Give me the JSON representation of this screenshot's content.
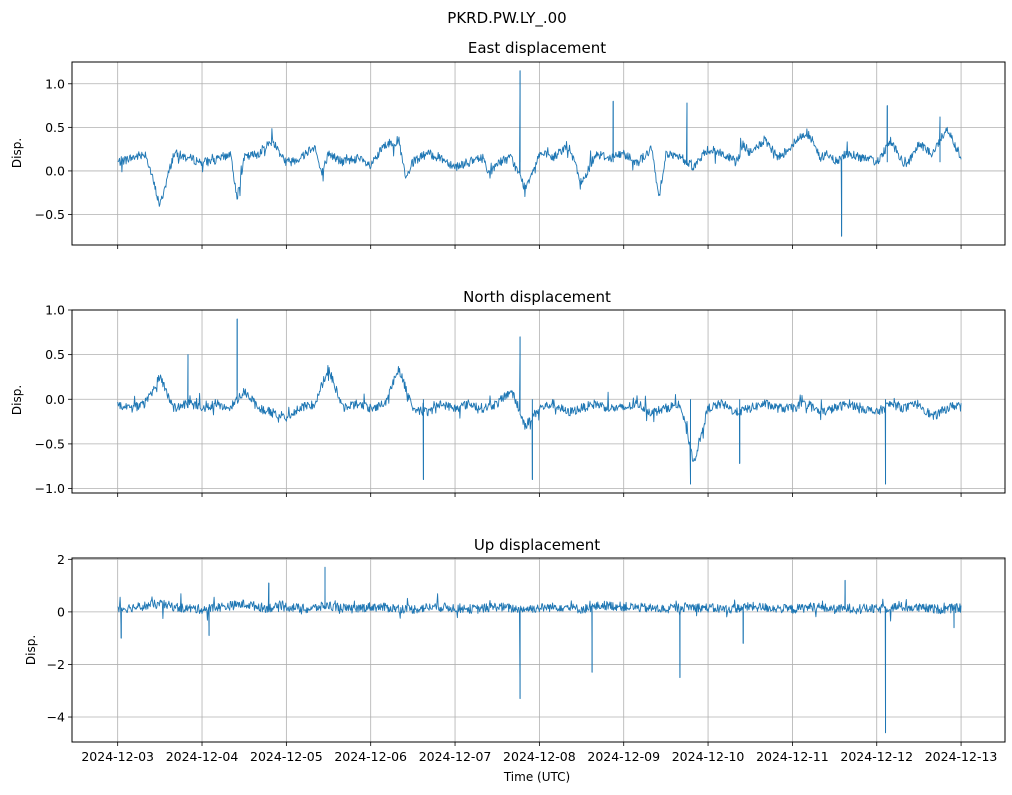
{
  "figure": {
    "suptitle": "PKRD.PW.LY_.00",
    "xlabel": "Time (UTC)",
    "x_ticks": [
      "2024-12-03",
      "2024-12-04",
      "2024-12-05",
      "2024-12-06",
      "2024-12-07",
      "2024-12-08",
      "2024-12-09",
      "2024-12-10",
      "2024-12-11",
      "2024-12-12",
      "2024-12-13"
    ],
    "line_color": "#1f77b4",
    "grid_color": "#b0b0b0"
  },
  "chart_data": [
    {
      "type": "line",
      "title": "East displacement",
      "ylabel": "Disp.",
      "xlim": [
        "2024-12-02T11:00",
        "2024-12-13T12:30"
      ],
      "ylim": [
        -0.85,
        1.25
      ],
      "yticks": [
        -0.5,
        0.0,
        0.5,
        1.0
      ],
      "ytick_labels": [
        "−0.5",
        "0.0",
        "0.5",
        "1.0"
      ],
      "grid": true,
      "series": [
        {
          "x": [
            "2024-12-03T00:00",
            "2024-12-03T04:00",
            "2024-12-03T08:00",
            "2024-12-03T10:00",
            "2024-12-03T12:00",
            "2024-12-03T16:00",
            "2024-12-03T20:00",
            "2024-12-04T00:00",
            "2024-12-04T04:00",
            "2024-12-04T08:00",
            "2024-12-04T10:00",
            "2024-12-04T12:00",
            "2024-12-04T16:00",
            "2024-12-04T20:00",
            "2024-12-05T00:00",
            "2024-12-05T04:00",
            "2024-12-05T08:00",
            "2024-12-05T10:00",
            "2024-12-05T12:00",
            "2024-12-05T16:00",
            "2024-12-05T20:00",
            "2024-12-06T00:00",
            "2024-12-06T04:00",
            "2024-12-06T08:00",
            "2024-12-06T10:00",
            "2024-12-06T12:00",
            "2024-12-06T16:00",
            "2024-12-06T20:00",
            "2024-12-07T00:00",
            "2024-12-07T04:00",
            "2024-12-07T08:00",
            "2024-12-07T10:00",
            "2024-12-07T12:00",
            "2024-12-07T16:00",
            "2024-12-07T20:00",
            "2024-12-08T00:00",
            "2024-12-08T04:00",
            "2024-12-08T08:00",
            "2024-12-08T10:00",
            "2024-12-08T12:00",
            "2024-12-08T16:00",
            "2024-12-08T20:00",
            "2024-12-09T00:00",
            "2024-12-09T04:00",
            "2024-12-09T08:00",
            "2024-12-09T10:00",
            "2024-12-09T12:00",
            "2024-12-09T16:00",
            "2024-12-09T20:00",
            "2024-12-10T00:00",
            "2024-12-10T04:00",
            "2024-12-10T08:00",
            "2024-12-10T10:00",
            "2024-12-10T12:00",
            "2024-12-10T16:00",
            "2024-12-10T20:00",
            "2024-12-11T00:00",
            "2024-12-11T04:00",
            "2024-12-11T08:00",
            "2024-12-11T10:00",
            "2024-12-11T12:00",
            "2024-12-11T16:00",
            "2024-12-11T20:00",
            "2024-12-12T00:00",
            "2024-12-12T04:00",
            "2024-12-12T08:00",
            "2024-12-12T10:00",
            "2024-12-12T12:00",
            "2024-12-12T16:00",
            "2024-12-12T20:00",
            "2024-12-13T00:00"
          ],
          "y": [
            0.1,
            0.15,
            0.2,
            -0.1,
            -0.4,
            0.2,
            0.15,
            0.1,
            0.12,
            0.2,
            -0.3,
            0.15,
            0.2,
            0.35,
            0.1,
            0.15,
            0.3,
            -0.05,
            0.2,
            0.1,
            0.15,
            0.05,
            0.3,
            0.35,
            -0.1,
            0.1,
            0.2,
            0.15,
            0.05,
            0.1,
            0.15,
            -0.05,
            0.1,
            0.15,
            -0.2,
            0.2,
            0.15,
            0.3,
            0.1,
            -0.15,
            0.2,
            0.15,
            0.2,
            0.1,
            0.25,
            -0.3,
            0.2,
            0.15,
            0.05,
            0.25,
            0.2,
            0.1,
            0.3,
            0.2,
            0.35,
            0.15,
            0.3,
            0.45,
            0.15,
            0.2,
            0.1,
            0.2,
            0.15,
            0.1,
            0.35,
            0.05,
            0.15,
            0.3,
            0.2,
            0.5,
            0.15
          ],
          "spikes": [
            {
              "x": "2024-12-07T18:30",
              "y": 1.15
            },
            {
              "x": "2024-12-08T21:00",
              "y": 0.8
            },
            {
              "x": "2024-12-09T18:00",
              "y": 0.78
            },
            {
              "x": "2024-12-11T14:00",
              "y": -0.75
            },
            {
              "x": "2024-12-12T03:00",
              "y": 0.75
            },
            {
              "x": "2024-12-12T18:00",
              "y": 0.62
            }
          ]
        }
      ]
    },
    {
      "type": "line",
      "title": "North displacement",
      "ylabel": "Disp.",
      "xlim": [
        "2024-12-02T11:00",
        "2024-12-13T12:30"
      ],
      "ylim": [
        -1.05,
        1.0
      ],
      "yticks": [
        -1.0,
        -0.5,
        0.0,
        0.5,
        1.0
      ],
      "ytick_labels": [
        "−1.0",
        "−0.5",
        "0.0",
        "0.5",
        "1.0"
      ],
      "grid": true,
      "series": [
        {
          "x": [
            "2024-12-03T00:00",
            "2024-12-03T04:00",
            "2024-12-03T08:00",
            "2024-12-03T12:00",
            "2024-12-03T16:00",
            "2024-12-03T20:00",
            "2024-12-04T00:00",
            "2024-12-04T04:00",
            "2024-12-04T08:00",
            "2024-12-04T12:00",
            "2024-12-04T16:00",
            "2024-12-04T20:00",
            "2024-12-05T00:00",
            "2024-12-05T04:00",
            "2024-12-05T08:00",
            "2024-12-05T12:00",
            "2024-12-05T16:00",
            "2024-12-05T20:00",
            "2024-12-06T00:00",
            "2024-12-06T04:00",
            "2024-12-06T08:00",
            "2024-12-06T12:00",
            "2024-12-06T16:00",
            "2024-12-06T20:00",
            "2024-12-07T00:00",
            "2024-12-07T04:00",
            "2024-12-07T08:00",
            "2024-12-07T12:00",
            "2024-12-07T16:00",
            "2024-12-07T20:00",
            "2024-12-08T00:00",
            "2024-12-08T04:00",
            "2024-12-08T08:00",
            "2024-12-08T12:00",
            "2024-12-08T16:00",
            "2024-12-08T20:00",
            "2024-12-09T00:00",
            "2024-12-09T04:00",
            "2024-12-09T08:00",
            "2024-12-09T12:00",
            "2024-12-09T16:00",
            "2024-12-09T20:00",
            "2024-12-10T00:00",
            "2024-12-10T04:00",
            "2024-12-10T08:00",
            "2024-12-10T12:00",
            "2024-12-10T16:00",
            "2024-12-10T20:00",
            "2024-12-11T00:00",
            "2024-12-11T04:00",
            "2024-12-11T08:00",
            "2024-12-11T12:00",
            "2024-12-11T16:00",
            "2024-12-11T20:00",
            "2024-12-12T00:00",
            "2024-12-12T04:00",
            "2024-12-12T08:00",
            "2024-12-12T12:00",
            "2024-12-12T16:00",
            "2024-12-12T20:00",
            "2024-12-13T00:00"
          ],
          "y": [
            -0.05,
            -0.1,
            -0.05,
            0.25,
            -0.1,
            -0.05,
            -0.1,
            -0.05,
            -0.1,
            0.1,
            -0.1,
            -0.15,
            -0.2,
            -0.1,
            -0.05,
            0.35,
            -0.1,
            -0.05,
            -0.1,
            -0.05,
            0.35,
            -0.1,
            -0.15,
            -0.05,
            -0.1,
            -0.05,
            -0.1,
            -0.05,
            0.1,
            -0.3,
            -0.1,
            -0.05,
            -0.15,
            -0.1,
            -0.05,
            -0.1,
            -0.1,
            -0.05,
            -0.15,
            -0.1,
            -0.05,
            -0.7,
            -0.1,
            -0.05,
            -0.15,
            -0.1,
            -0.05,
            -0.1,
            -0.1,
            -0.05,
            -0.15,
            -0.1,
            -0.05,
            -0.1,
            -0.15,
            -0.05,
            -0.1,
            -0.05,
            -0.2,
            -0.1,
            -0.05
          ],
          "spikes": [
            {
              "x": "2024-12-03T20:00",
              "y": 0.5
            },
            {
              "x": "2024-12-04T10:00",
              "y": 0.9
            },
            {
              "x": "2024-12-06T15:00",
              "y": -0.9
            },
            {
              "x": "2024-12-07T18:30",
              "y": 0.7
            },
            {
              "x": "2024-12-07T22:00",
              "y": -0.9
            },
            {
              "x": "2024-12-09T19:00",
              "y": -0.95
            },
            {
              "x": "2024-12-10T09:00",
              "y": -0.72
            },
            {
              "x": "2024-12-12T02:30",
              "y": -0.95
            }
          ]
        }
      ]
    },
    {
      "type": "line",
      "title": "Up displacement",
      "ylabel": "Disp.",
      "xlim": [
        "2024-12-02T11:00",
        "2024-12-13T12:30"
      ],
      "ylim": [
        -4.95,
        2.05
      ],
      "yticks": [
        -4,
        -2,
        0,
        2
      ],
      "ytick_labels": [
        "−4",
        "−2",
        "0",
        "2"
      ],
      "grid": true,
      "series": [
        {
          "x": [
            "2024-12-03T00:00",
            "2024-12-03T06:00",
            "2024-12-03T12:00",
            "2024-12-03T18:00",
            "2024-12-04T00:00",
            "2024-12-04T06:00",
            "2024-12-04T12:00",
            "2024-12-04T18:00",
            "2024-12-05T00:00",
            "2024-12-05T06:00",
            "2024-12-05T12:00",
            "2024-12-05T18:00",
            "2024-12-06T00:00",
            "2024-12-06T06:00",
            "2024-12-06T12:00",
            "2024-12-06T18:00",
            "2024-12-07T00:00",
            "2024-12-07T06:00",
            "2024-12-07T12:00",
            "2024-12-07T18:00",
            "2024-12-08T00:00",
            "2024-12-08T06:00",
            "2024-12-08T12:00",
            "2024-12-08T18:00",
            "2024-12-09T00:00",
            "2024-12-09T06:00",
            "2024-12-09T12:00",
            "2024-12-09T18:00",
            "2024-12-10T00:00",
            "2024-12-10T06:00",
            "2024-12-10T12:00",
            "2024-12-10T18:00",
            "2024-12-11T00:00",
            "2024-12-11T06:00",
            "2024-12-11T12:00",
            "2024-12-11T18:00",
            "2024-12-12T00:00",
            "2024-12-12T06:00",
            "2024-12-12T12:00",
            "2024-12-12T18:00",
            "2024-12-13T00:00"
          ],
          "y": [
            0.1,
            0.2,
            0.3,
            0.15,
            0.1,
            0.2,
            0.3,
            0.15,
            0.2,
            0.1,
            0.25,
            0.1,
            0.2,
            0.15,
            0.1,
            0.2,
            0.15,
            0.1,
            0.2,
            0.1,
            0.15,
            0.2,
            0.1,
            0.25,
            0.2,
            0.15,
            0.1,
            0.2,
            0.15,
            0.1,
            0.2,
            0.15,
            0.1,
            0.2,
            0.1,
            0.15,
            0.1,
            0.2,
            0.15,
            0.1,
            0.15
          ],
          "spikes": [
            {
              "x": "2024-12-03T01:00",
              "y": -1.0
            },
            {
              "x": "2024-12-04T02:00",
              "y": -0.9
            },
            {
              "x": "2024-12-04T19:00",
              "y": 1.1
            },
            {
              "x": "2024-12-05T11:00",
              "y": 1.7
            },
            {
              "x": "2024-12-07T18:30",
              "y": -3.3
            },
            {
              "x": "2024-12-08T15:00",
              "y": -2.3
            },
            {
              "x": "2024-12-09T16:00",
              "y": -2.5
            },
            {
              "x": "2024-12-10T10:00",
              "y": -1.2
            },
            {
              "x": "2024-12-11T15:00",
              "y": 1.2
            },
            {
              "x": "2024-12-12T02:30",
              "y": -4.6
            },
            {
              "x": "2024-12-12T22:00",
              "y": -0.6
            }
          ]
        }
      ]
    }
  ]
}
